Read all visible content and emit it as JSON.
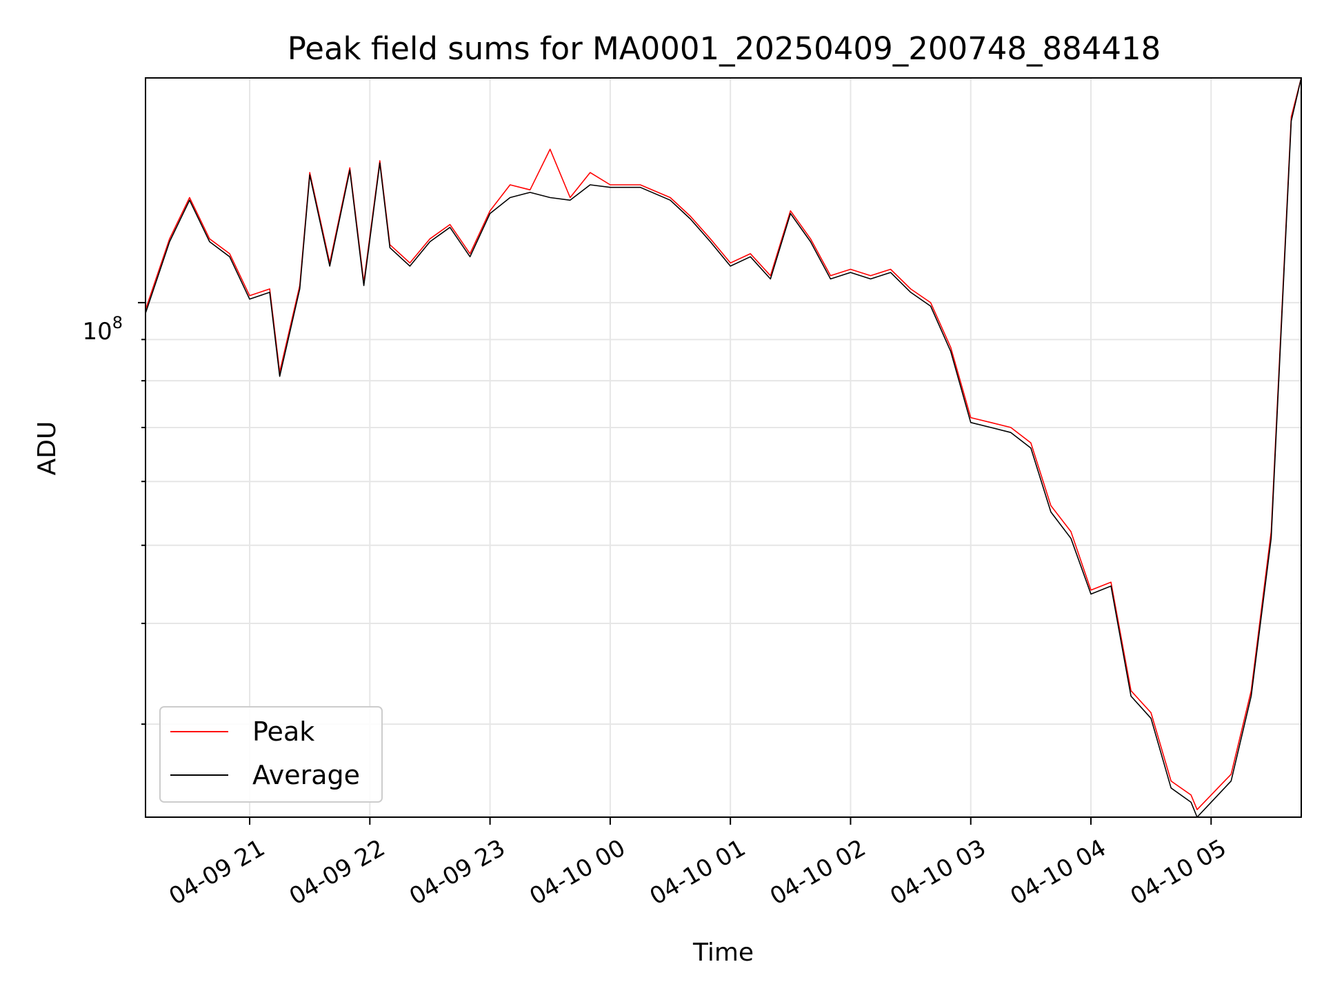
{
  "chart_data": {
    "type": "line",
    "title": "Peak field sums for MA0001_20250409_200748_884418",
    "xlabel": "Time",
    "ylabel": "ADU",
    "yscale": "log",
    "ylim": [
      23000000,
      190000000
    ],
    "xlim": [
      "2025-04-09 20:08",
      "2025-04-10 05:45"
    ],
    "x_ticks": [
      "04-09 21",
      "04-09 22",
      "04-09 23",
      "04-10 00",
      "04-10 01",
      "04-10 02",
      "04-10 03",
      "04-10 04",
      "04-10 05"
    ],
    "y_major_tick_label": "10",
    "y_major_tick_exponent": "8",
    "grid": true,
    "legend": {
      "placement": "lower-left"
    },
    "x": [
      "2025-04-09 20:08",
      "2025-04-09 20:20",
      "2025-04-09 20:30",
      "2025-04-09 20:40",
      "2025-04-09 20:50",
      "2025-04-09 21:00",
      "2025-04-09 21:10",
      "2025-04-09 21:15",
      "2025-04-09 21:25",
      "2025-04-09 21:30",
      "2025-04-09 21:40",
      "2025-04-09 21:50",
      "2025-04-09 21:57",
      "2025-04-09 22:05",
      "2025-04-09 22:10",
      "2025-04-09 22:20",
      "2025-04-09 22:30",
      "2025-04-09 22:40",
      "2025-04-09 22:50",
      "2025-04-09 23:00",
      "2025-04-09 23:10",
      "2025-04-09 23:20",
      "2025-04-09 23:30",
      "2025-04-09 23:40",
      "2025-04-09 23:50",
      "2025-04-10 00:00",
      "2025-04-10 00:15",
      "2025-04-10 00:30",
      "2025-04-10 00:40",
      "2025-04-10 00:50",
      "2025-04-10 01:00",
      "2025-04-10 01:10",
      "2025-04-10 01:20",
      "2025-04-10 01:30",
      "2025-04-10 01:40",
      "2025-04-10 01:50",
      "2025-04-10 02:00",
      "2025-04-10 02:10",
      "2025-04-10 02:20",
      "2025-04-10 02:30",
      "2025-04-10 02:40",
      "2025-04-10 02:50",
      "2025-04-10 03:00",
      "2025-04-10 03:10",
      "2025-04-10 03:20",
      "2025-04-10 03:30",
      "2025-04-10 03:40",
      "2025-04-10 03:50",
      "2025-04-10 04:00",
      "2025-04-10 04:10",
      "2025-04-10 04:20",
      "2025-04-10 04:30",
      "2025-04-10 04:40",
      "2025-04-10 04:50",
      "2025-04-10 04:53",
      "2025-04-10 05:00",
      "2025-04-10 05:10",
      "2025-04-10 05:20",
      "2025-04-10 05:30",
      "2025-04-10 05:40",
      "2025-04-10 05:45"
    ],
    "series": [
      {
        "name": "Peak",
        "color": "#ff0000",
        "values": [
          98000000,
          120000000,
          135000000,
          120000000,
          115000000,
          102000000,
          104000000,
          82000000,
          105000000,
          145000000,
          112000000,
          147000000,
          106000000,
          150000000,
          118000000,
          112000000,
          120000000,
          125000000,
          115000000,
          130000000,
          140000000,
          138000000,
          155000000,
          135000000,
          145000000,
          140000000,
          140000000,
          135000000,
          128000000,
          120000000,
          112000000,
          115000000,
          108000000,
          130000000,
          120000000,
          108000000,
          110000000,
          108000000,
          110000000,
          104000000,
          100000000,
          88000000,
          72000000,
          71000000,
          70000000,
          67000000,
          56000000,
          52000000,
          44000000,
          45000000,
          33000000,
          31000000,
          25500000,
          24500000,
          23500000,
          24500000,
          26000000,
          33000000,
          52000000,
          170000000,
          190000000
        ]
      },
      {
        "name": "Average",
        "color": "#000000",
        "values": [
          97000000,
          119000000,
          134000000,
          119000000,
          114000000,
          101000000,
          103000000,
          81000000,
          104000000,
          144000000,
          111000000,
          146000000,
          105000000,
          149000000,
          117000000,
          111000000,
          119000000,
          124000000,
          114000000,
          129000000,
          135000000,
          137000000,
          135000000,
          134000000,
          140000000,
          139000000,
          139000000,
          134000000,
          127000000,
          119000000,
          111000000,
          114000000,
          107000000,
          129000000,
          119000000,
          107000000,
          109000000,
          107000000,
          109000000,
          103000000,
          99000000,
          87000000,
          71000000,
          70000000,
          69000000,
          66000000,
          55000000,
          51000000,
          43500000,
          44500000,
          32500000,
          30500000,
          25000000,
          24000000,
          23000000,
          24000000,
          25500000,
          32500000,
          51000000,
          168000000,
          190000000
        ]
      }
    ]
  }
}
